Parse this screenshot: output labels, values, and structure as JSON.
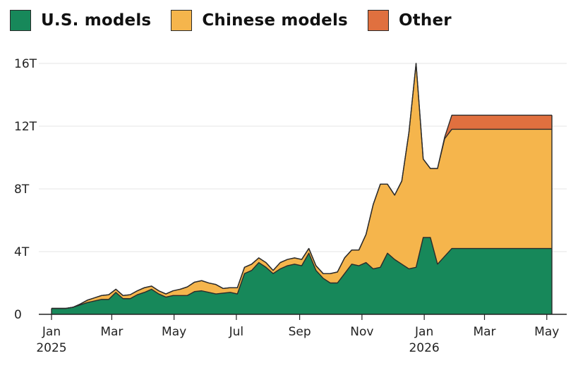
{
  "legend": [
    {
      "label": "U.S. models",
      "color": "#17885a"
    },
    {
      "label": "Chinese models",
      "color": "#f5b54c"
    },
    {
      "label": "Other",
      "color": "#e0703f"
    }
  ],
  "chart_data": {
    "type": "area",
    "stacked": true,
    "title": "",
    "xlabel": "",
    "ylabel": "",
    "ylim": [
      0,
      16
    ],
    "y_unit": "T",
    "grid": true,
    "legend_placement": "top-left",
    "y_ticks": [
      {
        "value": 0,
        "label": "0"
      },
      {
        "value": 4,
        "label": "4T"
      },
      {
        "value": 8,
        "label": "8T"
      },
      {
        "value": 12,
        "label": "12T"
      },
      {
        "value": 16,
        "label": "16T"
      }
    ],
    "x_ticks": [
      {
        "date": "2025-01-01",
        "label": "Jan",
        "sub": "2025"
      },
      {
        "date": "2025-03-01",
        "label": "Mar",
        "sub": ""
      },
      {
        "date": "2025-05-01",
        "label": "May",
        "sub": ""
      },
      {
        "date": "2025-07-01",
        "label": "Jul",
        "sub": ""
      },
      {
        "date": "2025-09-01",
        "label": "Sep",
        "sub": ""
      },
      {
        "date": "2025-11-01",
        "label": "Nov",
        "sub": ""
      },
      {
        "date": "2026-01-01",
        "label": "Jan",
        "sub": "2026"
      },
      {
        "date": "2026-03-01",
        "label": "Mar",
        "sub": ""
      },
      {
        "date": "2026-05-01",
        "label": "May",
        "sub": ""
      }
    ],
    "x": [
      "2025-01-01",
      "2025-01-08",
      "2025-01-15",
      "2025-01-22",
      "2025-01-29",
      "2025-02-05",
      "2025-02-12",
      "2025-02-19",
      "2025-02-26",
      "2025-03-05",
      "2025-03-12",
      "2025-03-19",
      "2025-03-26",
      "2025-04-02",
      "2025-04-09",
      "2025-04-16",
      "2025-04-23",
      "2025-04-30",
      "2025-05-07",
      "2025-05-14",
      "2025-05-21",
      "2025-05-28",
      "2025-06-04",
      "2025-06-11",
      "2025-06-18",
      "2025-06-25",
      "2025-07-02",
      "2025-07-09",
      "2025-07-16",
      "2025-07-23",
      "2025-07-30",
      "2025-08-06",
      "2025-08-13",
      "2025-08-20",
      "2025-08-27",
      "2025-09-03",
      "2025-09-10",
      "2025-09-17",
      "2025-09-24",
      "2025-10-01",
      "2025-10-08",
      "2025-10-15",
      "2025-10-22",
      "2025-10-29",
      "2025-11-05",
      "2025-11-12",
      "2025-11-19",
      "2025-11-26",
      "2025-12-03",
      "2025-12-10",
      "2025-12-17",
      "2025-12-24",
      "2025-12-31",
      "2026-01-07",
      "2026-01-14",
      "2026-01-21",
      "2026-01-28",
      "2026-02-04",
      "2026-02-11",
      "2026-02-18",
      "2026-02-25",
      "2026-03-04",
      "2026-03-11",
      "2026-03-18",
      "2026-03-25",
      "2026-04-01",
      "2026-04-08",
      "2026-04-15",
      "2026-04-22",
      "2026-04-29",
      "2026-05-06"
    ],
    "series": [
      {
        "name": "U.S. models",
        "values": [
          0.38,
          0.38,
          0.38,
          0.45,
          0.6,
          0.75,
          0.85,
          0.95,
          0.95,
          1.4,
          1.0,
          1.0,
          1.25,
          1.4,
          1.6,
          1.3,
          1.1,
          1.2,
          1.2,
          1.2,
          1.45,
          1.5,
          1.4,
          1.3,
          1.35,
          1.4,
          1.3,
          2.6,
          2.8,
          3.3,
          3.0,
          2.6,
          2.9,
          3.1,
          3.2,
          3.1,
          3.9,
          2.8,
          2.3,
          2.0,
          2.0,
          2.6,
          3.2,
          3.1,
          3.3,
          2.9,
          3.0,
          3.9,
          3.5,
          3.2,
          2.9,
          3.0,
          4.9,
          4.9,
          3.2,
          3.7,
          4.2,
          4.2,
          4.2,
          4.2,
          4.2,
          4.2,
          4.2,
          4.2,
          4.2,
          4.2,
          4.2,
          4.2,
          4.2,
          4.2,
          4.2
        ]
      },
      {
        "name": "Chinese models",
        "values": [
          0,
          0,
          0,
          0,
          0.05,
          0.15,
          0.2,
          0.25,
          0.3,
          0.2,
          0.2,
          0.25,
          0.25,
          0.3,
          0.2,
          0.2,
          0.2,
          0.3,
          0.4,
          0.55,
          0.6,
          0.65,
          0.6,
          0.6,
          0.3,
          0.3,
          0.4,
          0.4,
          0.4,
          0.3,
          0.3,
          0.2,
          0.4,
          0.4,
          0.4,
          0.4,
          0.3,
          0.3,
          0.3,
          0.6,
          0.7,
          1.0,
          0.9,
          1.0,
          1.8,
          4.1,
          5.3,
          4.4,
          4.1,
          5.3,
          8.7,
          13.0,
          5.0,
          4.4,
          6.1,
          7.5,
          7.6,
          7.6,
          7.6,
          7.6,
          7.6,
          7.6,
          7.6,
          7.6,
          7.6,
          7.6,
          7.6,
          7.6,
          7.6,
          7.6,
          7.6
        ]
      },
      {
        "name": "Other",
        "values": [
          0,
          0,
          0,
          0,
          0,
          0,
          0,
          0,
          0,
          0,
          0,
          0,
          0,
          0,
          0,
          0,
          0,
          0,
          0,
          0,
          0,
          0,
          0,
          0,
          0,
          0,
          0,
          0,
          0,
          0,
          0,
          0,
          0,
          0,
          0,
          0,
          0,
          0,
          0,
          0,
          0,
          0,
          0,
          0,
          0,
          0,
          0,
          0,
          0,
          0,
          0,
          0,
          0,
          0,
          0,
          0.1,
          0.9,
          0.9,
          0.9,
          0.9,
          0.9,
          0.9,
          0.9,
          0.9,
          0.9,
          0.9,
          0.9,
          0.9,
          0.9,
          0.9,
          0.9
        ]
      }
    ]
  }
}
